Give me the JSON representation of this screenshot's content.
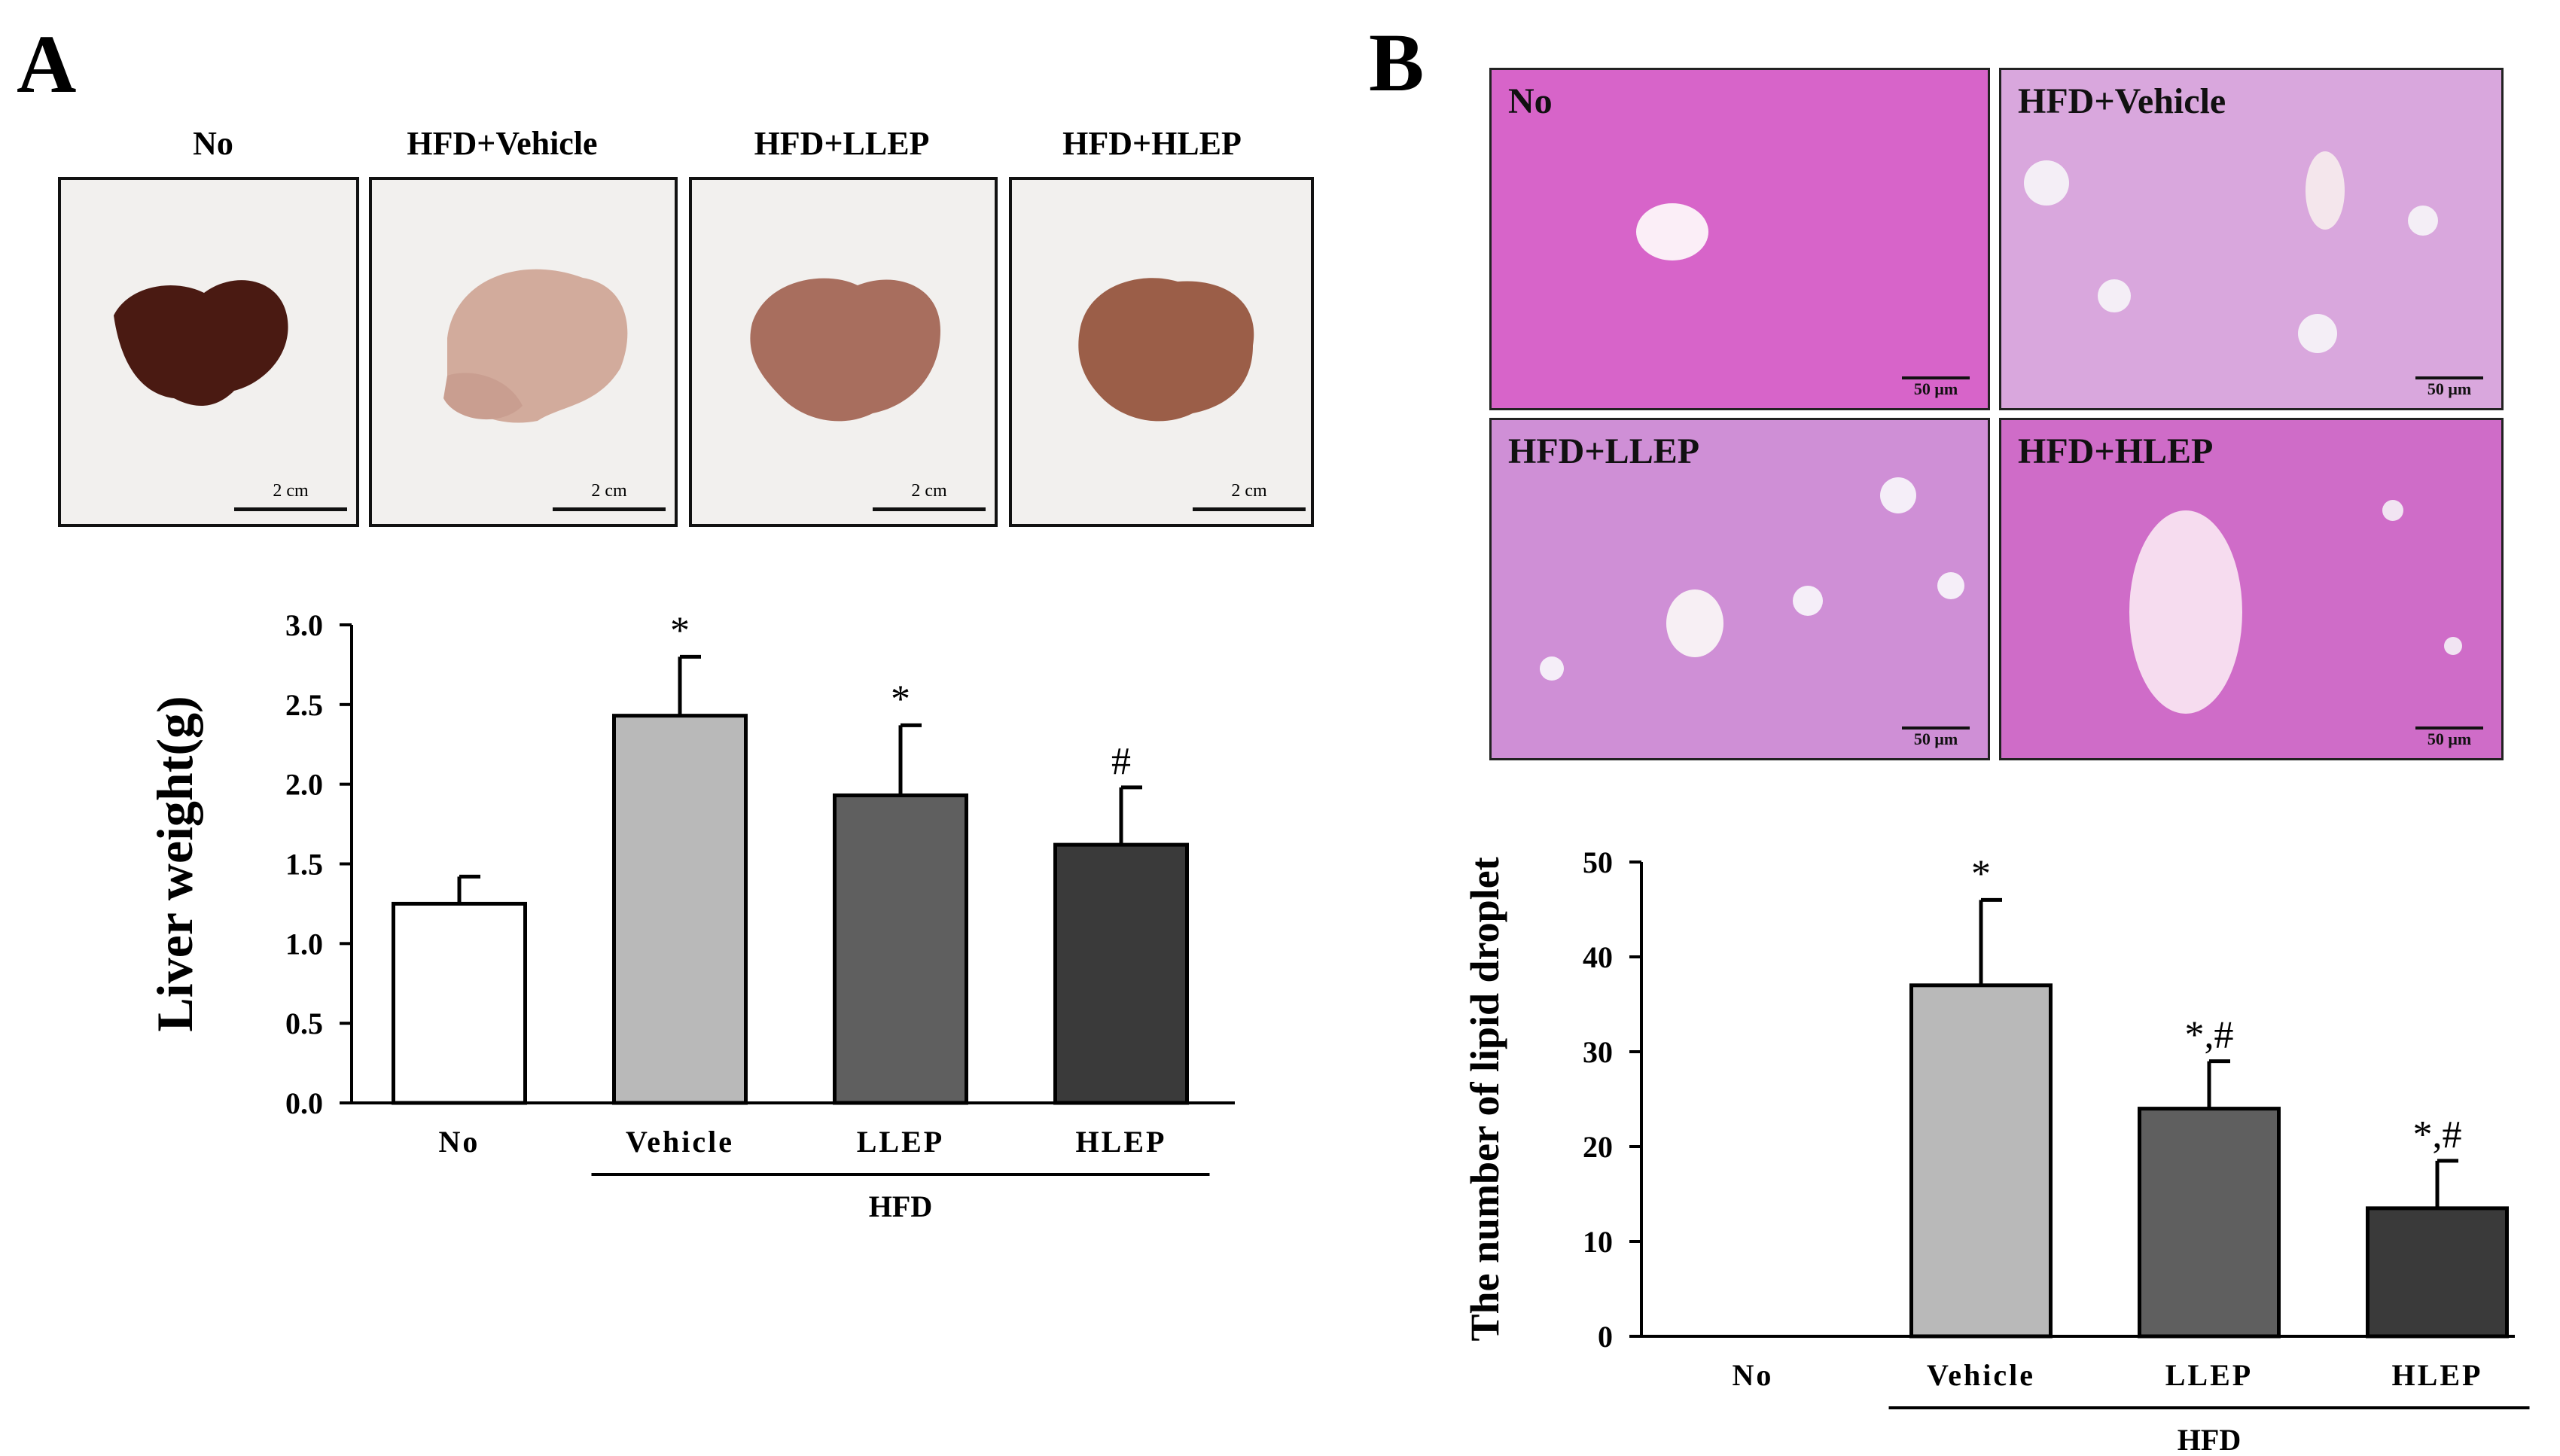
{
  "panels": {
    "a_letter": "A",
    "b_letter": "B"
  },
  "photos": [
    {
      "label": "No",
      "scale": "2 cm",
      "color": "#4a1a12"
    },
    {
      "label": "HFD+Vehicle",
      "scale": "2 cm",
      "color": "#d2ab9c"
    },
    {
      "label": "HFD+LLEP",
      "scale": "2 cm",
      "color": "#a86e5e"
    },
    {
      "label": "HFD+HLEP",
      "scale": "2 cm",
      "color": "#9b5e48"
    }
  ],
  "histology": [
    {
      "label": "No",
      "scale": "50 μm"
    },
    {
      "label": "HFD+Vehicle",
      "scale": "50 μm"
    },
    {
      "label": "HFD+LLEP",
      "scale": "50 μm"
    },
    {
      "label": "HFD+HLEP",
      "scale": "50 μm"
    }
  ],
  "chart_data": [
    {
      "type": "bar",
      "title": "",
      "xlabel": "",
      "ylabel": "Liver weight(g)",
      "categories": [
        "No",
        "Vehicle",
        "LLEP",
        "HLEP"
      ],
      "group_label": "HFD",
      "values": [
        1.25,
        2.43,
        1.93,
        1.62
      ],
      "errors": [
        0.17,
        0.37,
        0.44,
        0.36
      ],
      "annotations": [
        "",
        "*",
        "*",
        "#"
      ],
      "colors": [
        "#ffffff",
        "#b9b9b9",
        "#5f5f5f",
        "#3a3a3a"
      ],
      "ylim": [
        0.0,
        3.0
      ],
      "yticks": [
        "0.0",
        "0.5",
        "1.0",
        "1.5",
        "2.0",
        "2.5",
        "3.0"
      ]
    },
    {
      "type": "bar",
      "title": "",
      "xlabel": "",
      "ylabel": "The number of lipid droplet",
      "categories": [
        "No",
        "Vehicle",
        "LLEP",
        "HLEP"
      ],
      "group_label": "HFD",
      "values": [
        0,
        37,
        24,
        13.5
      ],
      "errors": [
        0,
        9,
        5,
        5
      ],
      "annotations": [
        "",
        "*",
        "*,#",
        "*,#"
      ],
      "colors": [
        "#ffffff",
        "#b9b9b9",
        "#5f5f5f",
        "#3a3a3a"
      ],
      "ylim": [
        0,
        50
      ],
      "yticks": [
        "0",
        "10",
        "20",
        "30",
        "40",
        "50"
      ]
    }
  ]
}
